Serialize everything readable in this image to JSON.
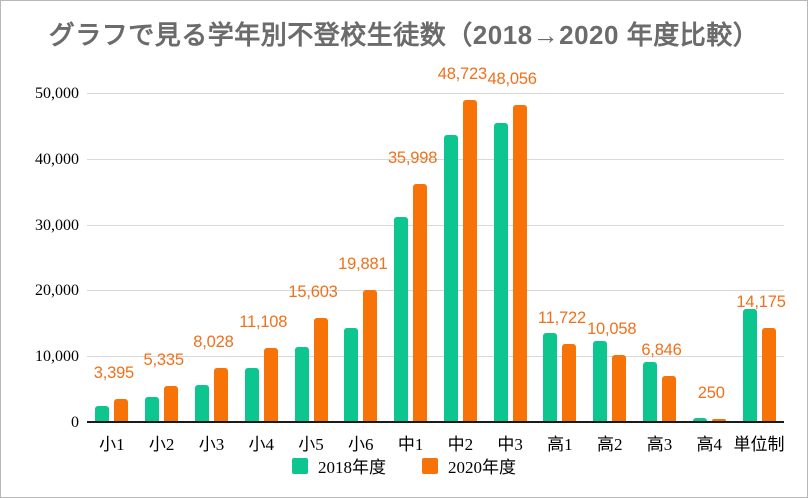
{
  "chart_data": {
    "type": "bar",
    "title": "グラフで見る学年別不登校生徒数（2018→2020 年度比較）",
    "title_color": "#6b6b6b",
    "categories": [
      "小1",
      "小2",
      "小3",
      "小4",
      "小5",
      "小6",
      "中1",
      "中2",
      "中3",
      "高1",
      "高2",
      "高3",
      "高4",
      "単位制"
    ],
    "series": [
      {
        "name": "2018年度",
        "color": "#0dc58f",
        "values": [
          2296,
          3625,
          5496,
          8089,
          11274,
          14061,
          31046,
          43428,
          45327,
          13400,
          12200,
          8900,
          450,
          17000
        ],
        "labels_shown": false
      },
      {
        "name": "2020年度",
        "color": "#f87307",
        "values": [
          3395,
          5335,
          8028,
          11108,
          15603,
          19881,
          35998,
          48723,
          48056,
          11722,
          10058,
          6846,
          250,
          14175
        ],
        "labels_shown": true,
        "data_labels": [
          "3,395",
          "5,335",
          "8,028",
          "11,108",
          "15,603",
          "19,881",
          "35,998",
          "48,723",
          "48,056",
          "11,722",
          "10,058",
          "6,846",
          "250",
          "14,175"
        ],
        "data_label_color": "#ef711b"
      }
    ],
    "ylim": [
      0,
      50000
    ],
    "ytick_interval": 10000,
    "ytick_labels": [
      "0",
      "10,000",
      "20,000",
      "30,000",
      "40,000",
      "50,000"
    ],
    "grid": true,
    "gridline_color": "#d9d9d9",
    "axis_color": "#1a1a1a",
    "legend_position": "bottom"
  }
}
